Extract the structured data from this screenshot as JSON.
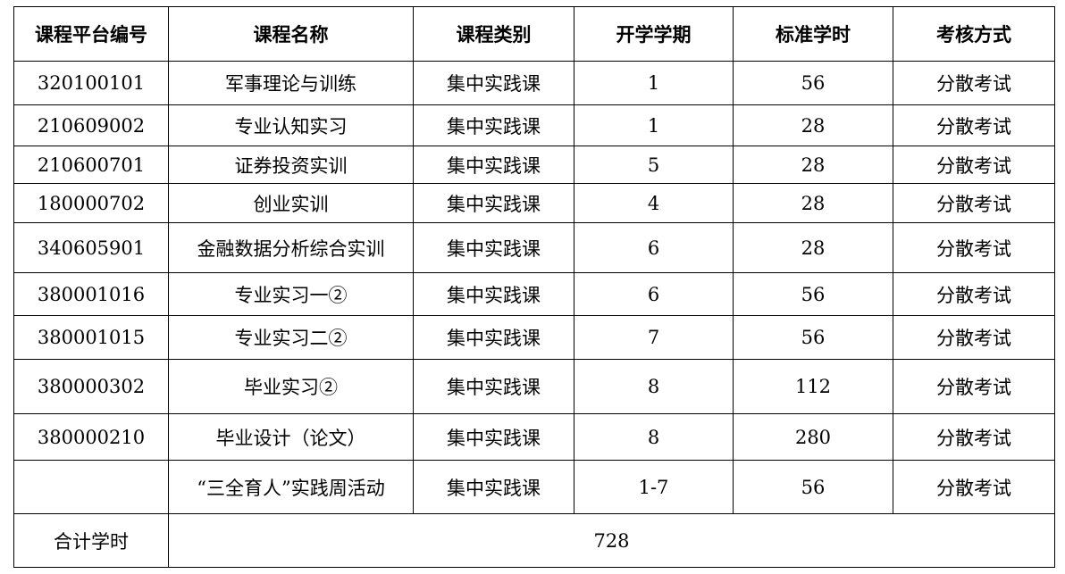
{
  "headers": [
    "课程平台编号",
    "课程名称",
    "课程类别",
    "开学学期",
    "标准学时",
    "考核方式"
  ],
  "rows": [
    [
      "320100101",
      "军事理论与训练",
      "集中实践课",
      "1",
      "56",
      "分散考试"
    ],
    [
      "210609002",
      "专业认知实习",
      "集中实践课",
      "1",
      "28",
      "分散考试"
    ],
    [
      "210600701",
      "证券投资实训",
      "集中实践课",
      "5",
      "28",
      "分散考试"
    ],
    [
      "180000702",
      "创业实训",
      "集中实践课",
      "4",
      "28",
      "分散考试"
    ],
    [
      "340605901",
      "金融数据分析综合实训",
      "集中实践课",
      "6",
      "28",
      "分散考试"
    ],
    [
      "380001016",
      "专业实习一②",
      "集中实践课",
      "6",
      "56",
      "分散考试"
    ],
    [
      "380001015",
      "专业实习二②",
      "集中实践课",
      "7",
      "56",
      "分散考试"
    ],
    [
      "380000302",
      "毕业实习②",
      "集中实践课",
      "8",
      "112",
      "分散考试"
    ],
    [
      "380000210",
      "毕业设计（论文）",
      "集中实践课",
      "8",
      "280",
      "分散考试"
    ],
    [
      "",
      "“三全育人”实践周活动",
      "集中实践课",
      "1-7",
      "56",
      "分散考试"
    ]
  ],
  "total": {
    "label": "合计学时",
    "value": "728"
  }
}
